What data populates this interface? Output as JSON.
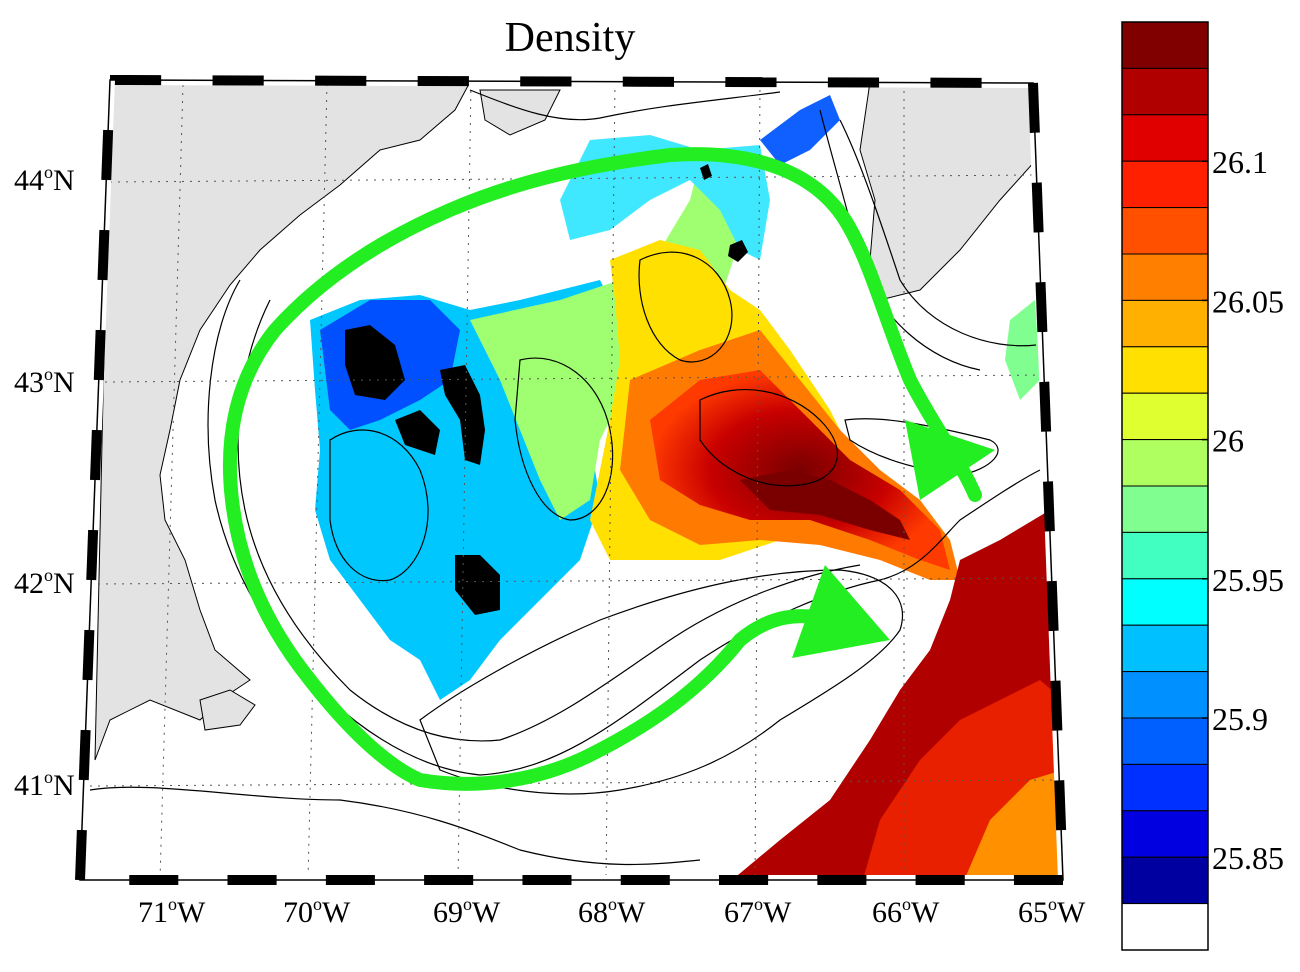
{
  "title": "Density",
  "map": {
    "lon_labels": [
      {
        "deg": "71",
        "hem": "W"
      },
      {
        "deg": "70",
        "hem": "W"
      },
      {
        "deg": "69",
        "hem": "W"
      },
      {
        "deg": "68",
        "hem": "W"
      },
      {
        "deg": "67",
        "hem": "W"
      },
      {
        "deg": "66",
        "hem": "W"
      },
      {
        "deg": "65",
        "hem": "W"
      }
    ],
    "lat_labels": [
      {
        "deg": "44",
        "hem": "N"
      },
      {
        "deg": "43",
        "hem": "N"
      },
      {
        "deg": "42",
        "hem": "N"
      },
      {
        "deg": "41",
        "hem": "N"
      }
    ],
    "colors": {
      "land": "#e3e3e3",
      "arrow": "#22ee22",
      "frame": "#000000"
    }
  },
  "colorbar": {
    "tick_labels": [
      "26.1",
      "26.05",
      "26",
      "25.95",
      "25.9",
      "25.85"
    ],
    "colors": [
      "#800000",
      "#b00000",
      "#e00000",
      "#ff2000",
      "#ff5000",
      "#ff8000",
      "#ffb000",
      "#ffe000",
      "#e0ff30",
      "#b0ff60",
      "#80ff90",
      "#40ffc0",
      "#00ffff",
      "#00c0ff",
      "#0090ff",
      "#0060ff",
      "#0030ff",
      "#0000e0",
      "#0000a0",
      "#ffffff"
    ]
  }
}
